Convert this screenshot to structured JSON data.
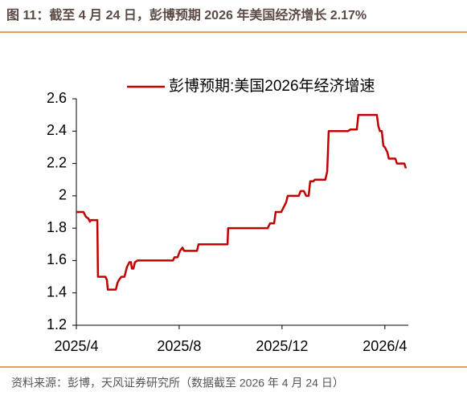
{
  "chart_data": {
    "type": "line",
    "title": "图 11：截至 4 月 24 日，彭博预期 2026 年美国经济增长 2.17%",
    "source": "资料来源：彭博，天风证券研究所（数据截至 2026 年 4 月 24 日）",
    "x": [
      2025.25,
      2025.273,
      2025.281,
      2025.289,
      2025.294,
      2025.297,
      2025.318,
      2025.32,
      2025.344,
      2025.349,
      2025.352,
      2025.378,
      2025.383,
      2025.388,
      2025.396,
      2025.406,
      2025.414,
      2025.422,
      2025.427,
      2025.43,
      2025.435,
      2025.44,
      2025.448,
      2025.563,
      2025.568,
      2025.578,
      2025.586,
      2025.594,
      2025.599,
      2025.641,
      2025.646,
      2025.74,
      2025.742,
      2025.87,
      2025.878,
      2025.891,
      2025.896,
      2025.914,
      2025.922,
      2025.93,
      2025.935,
      2025.971,
      2025.977,
      2025.987,
      2025.995,
      2026.003,
      2026.008,
      2026.018,
      2026.023,
      2026.057,
      2026.063,
      2026.068,
      2026.13,
      2026.138,
      2026.159,
      2026.164,
      2026.224,
      2026.229,
      2026.234,
      2026.24,
      2026.245,
      2026.25,
      2026.258,
      2026.263,
      2026.284,
      2026.289,
      2026.313,
      2026.318
    ],
    "series": [
      {
        "name": "彭博预期:美国2026年经济增速",
        "color": "#c00000",
        "values": [
          1.9,
          1.9,
          1.87,
          1.86,
          1.84,
          1.85,
          1.85,
          1.5,
          1.5,
          1.48,
          1.42,
          1.42,
          1.46,
          1.48,
          1.5,
          1.5,
          1.56,
          1.59,
          1.59,
          1.55,
          1.55,
          1.59,
          1.6,
          1.6,
          1.62,
          1.62,
          1.66,
          1.68,
          1.66,
          1.66,
          1.7,
          1.7,
          1.8,
          1.8,
          1.83,
          1.83,
          1.9,
          1.9,
          1.93,
          1.96,
          2.0,
          2.0,
          2.03,
          2.03,
          2.0,
          2.0,
          2.09,
          2.09,
          2.1,
          2.1,
          2.15,
          2.4,
          2.4,
          2.41,
          2.41,
          2.5,
          2.5,
          2.43,
          2.4,
          2.4,
          2.31,
          2.3,
          2.27,
          2.23,
          2.23,
          2.2,
          2.2,
          2.17
        ]
      }
    ],
    "xlim": [
      2025.25,
      2026.326
    ],
    "xticks": [
      {
        "value": 2025.25,
        "label": "2025/4"
      },
      {
        "value": 2025.5833,
        "label": "2025/8"
      },
      {
        "value": 2025.9167,
        "label": "2025/12"
      },
      {
        "value": 2026.25,
        "label": "2026/4"
      }
    ],
    "ylim": [
      1.2,
      2.6
    ],
    "yticks": [
      1.2,
      1.4,
      1.6,
      1.8,
      2,
      2.2,
      2.4,
      2.6
    ],
    "grid": false
  }
}
